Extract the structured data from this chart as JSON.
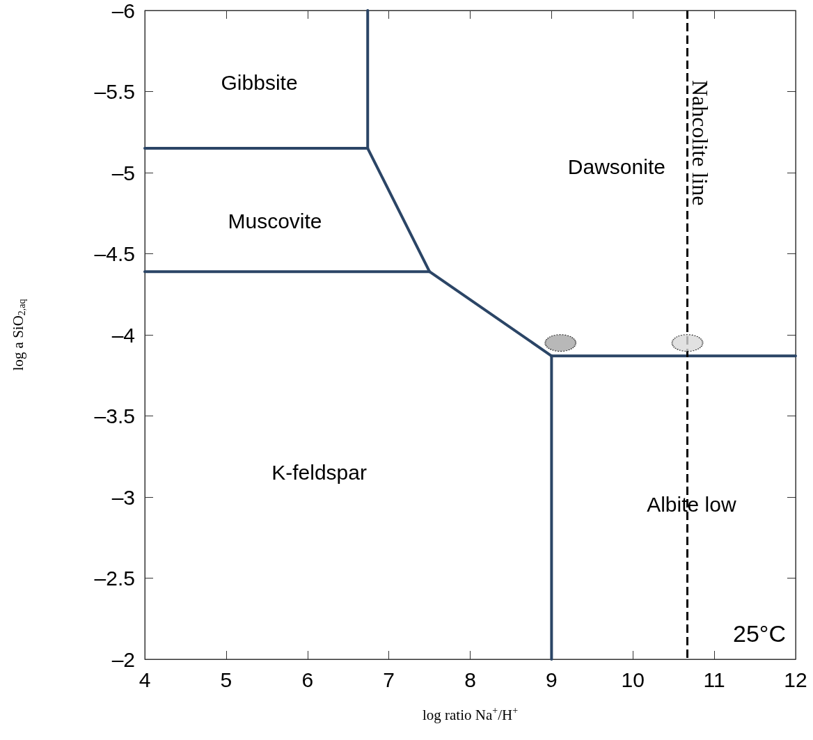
{
  "chart_data": {
    "type": "line",
    "xlabel": "log ratio Na$^{+}$/H$^{+}$",
    "ylabel": "log a SiO$_{2,aq}$",
    "xlim": [
      4,
      12
    ],
    "xticks": [
      4,
      5,
      6,
      7,
      8,
      9,
      10,
      11,
      12
    ],
    "ylim": [
      -2,
      -6
    ],
    "yticks": [
      {
        "value": -6,
        "label": "–6"
      },
      {
        "value": -5.5,
        "label": "–5.5"
      },
      {
        "value": -5,
        "label": "–5"
      },
      {
        "value": -4.5,
        "label": "–4.5"
      },
      {
        "value": -4,
        "label": "–4"
      },
      {
        "value": -3.5,
        "label": "–3.5"
      },
      {
        "value": -3,
        "label": "–3"
      },
      {
        "value": -2.5,
        "label": "–2.5"
      },
      {
        "value": -2,
        "label": "–2"
      }
    ],
    "grid": false,
    "marker": "none",
    "line_style": "solid",
    "series": [
      {
        "color": "#2b4566",
        "x": [
          6.74,
          6.74
        ],
        "values": [
          -6,
          -5.15
        ]
      },
      {
        "color": "#2b4566",
        "x": [
          4,
          6.74
        ],
        "values": [
          -5.15,
          -5.15
        ]
      },
      {
        "color": "#2b4566",
        "x": [
          6.74,
          7.5
        ],
        "values": [
          -5.15,
          -4.39
        ]
      },
      {
        "color": "#2b4566",
        "x": [
          4,
          7.5
        ],
        "values": [
          -4.39,
          -4.39
        ]
      },
      {
        "color": "#2b4566",
        "x": [
          7.5,
          9
        ],
        "values": [
          -4.39,
          -3.87
        ]
      },
      {
        "color": "#2b4566",
        "x": [
          9,
          12
        ],
        "values": [
          -3.87,
          -3.87
        ]
      },
      {
        "color": "#2b4566",
        "x": [
          9,
          9
        ],
        "values": [
          -3.87,
          -2
        ]
      },
      {
        "type": "scatter",
        "marker": "circle",
        "x": [
          9.11
        ],
        "values": [
          -3.95
        ],
        "color": "#a6a6a6"
      },
      {
        "type": "scatter",
        "marker": "circle",
        "x": [
          10.67
        ],
        "values": [
          -3.95
        ],
        "color": "#d9d9d9"
      }
    ],
    "ref_lines": [
      {
        "axis": "x",
        "value": 10.67,
        "label": "Nahcolite line",
        "color": "#000000",
        "line_style": "dashed"
      }
    ],
    "annotations": [
      "Gibbsite",
      "Muscovite",
      "Dawsonite",
      "K-feldspar",
      "Albite low",
      "25°C"
    ]
  }
}
